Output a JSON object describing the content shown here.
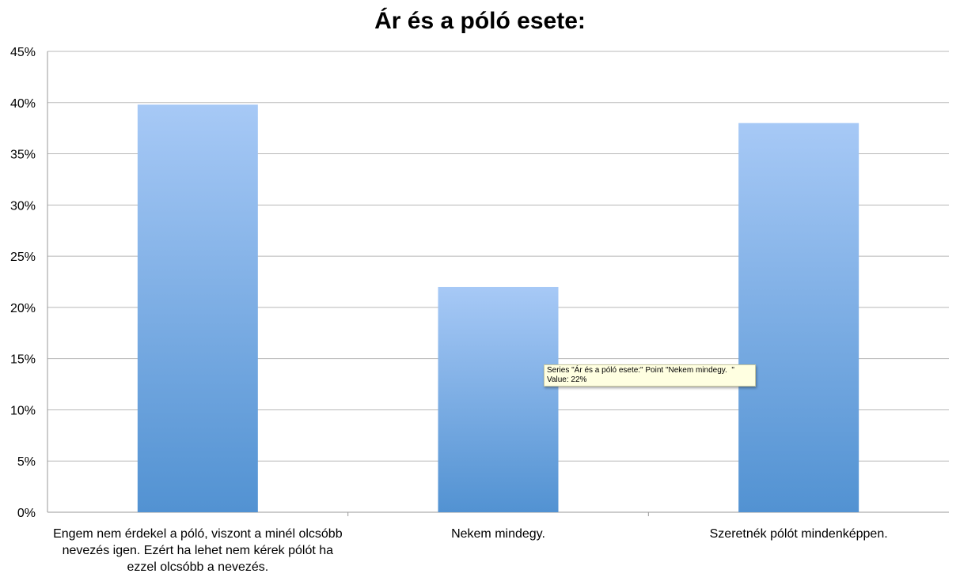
{
  "chart_data": {
    "type": "bar",
    "title": "Ár és a póló esete:",
    "categories": [
      "Engem nem érdekel a póló, viszont a minél olcsóbb nevezés igen. Ezért ha lehet nem kérek pólót ha ezzel olcsóbb a nevezés.",
      "Nekem mindegy.",
      "Szeretnék  pólót mindenképpen."
    ],
    "values": [
      39.8,
      22,
      38
    ],
    "ylim": [
      0,
      45
    ],
    "yticks": [
      "0%",
      "5%",
      "10%",
      "15%",
      "20%",
      "25%",
      "30%",
      "35%",
      "40%",
      "45%"
    ],
    "grid": true,
    "bar_color_top": "#a7c9f6",
    "bar_color_bottom": "#5292d2"
  },
  "tooltip": {
    "line1": "Series \"Ár és a póló esete:\" Point \"Nekem mindegy.  \"",
    "line2": "Value: 22%"
  }
}
